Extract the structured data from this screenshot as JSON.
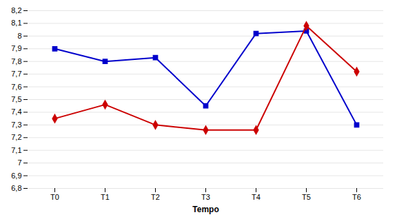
{
  "chart_data": {
    "type": "line",
    "xlabel": "Tempo",
    "categories": [
      "T0",
      "T1",
      "T2",
      "T3",
      "T4",
      "T5",
      "T6"
    ],
    "series": [
      {
        "color": "#0000CC",
        "marker": "square",
        "values": [
          7.9,
          7.8,
          7.83,
          7.45,
          8.02,
          8.04,
          7.3
        ]
      },
      {
        "color": "#CC0000",
        "marker": "diamond",
        "values": [
          7.35,
          7.46,
          7.3,
          7.26,
          7.26,
          8.08,
          7.72
        ]
      }
    ],
    "ylim": [
      6.8,
      8.2
    ],
    "yticks": [
      {
        "value": 6.8,
        "label": "6,8"
      },
      {
        "value": 6.9,
        "label": "6,9"
      },
      7,
      {
        "value": 7.1,
        "label": "7,1"
      },
      {
        "value": 7.2,
        "label": "7,2"
      },
      {
        "value": 7.3,
        "label": "7,3"
      },
      {
        "value": 7.4,
        "label": "7,4"
      },
      {
        "value": 7.5,
        "label": "7,5"
      },
      {
        "value": 7.6,
        "label": "7,6"
      },
      {
        "value": 7.7,
        "label": "7,7"
      },
      {
        "value": 7.8,
        "label": "7,8"
      },
      {
        "value": 7.9,
        "label": "7,9"
      },
      8,
      {
        "value": 8.1,
        "label": "8,1"
      },
      {
        "value": 8.2,
        "label": "8,2"
      }
    ],
    "grid": true
  }
}
